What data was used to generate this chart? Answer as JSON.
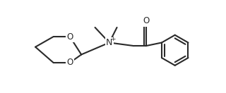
{
  "background_color": "#ffffff",
  "line_color": "#2a2a2a",
  "line_width": 1.5,
  "font_size": 8.5,
  "figsize": [
    3.2,
    1.32
  ],
  "dpi": 100,
  "xlim": [
    0,
    320
  ],
  "ylim": [
    0,
    132
  ]
}
